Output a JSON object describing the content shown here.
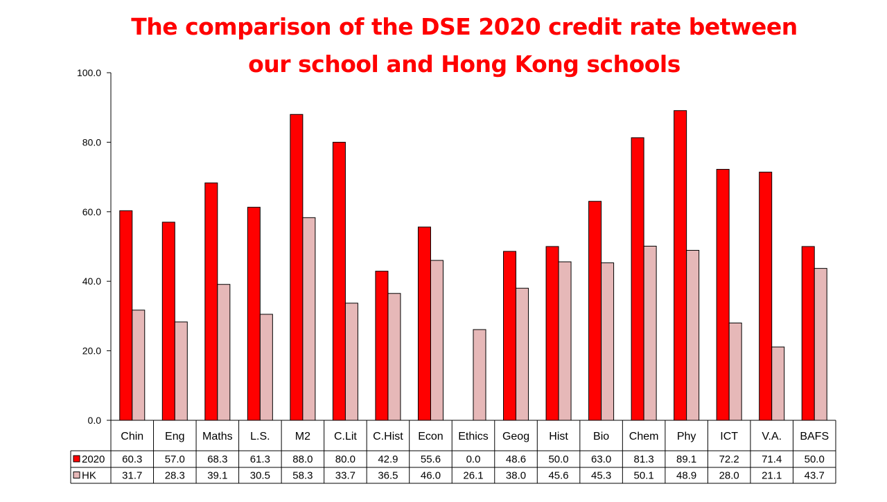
{
  "chart_data": {
    "type": "bar",
    "title_line1": "The comparison of the DSE 2020 credit rate between",
    "title_line2": "our school and Hong Kong schools",
    "categories": [
      "Chin",
      "Eng",
      "Maths",
      "L.S.",
      "M2",
      "C.Lit",
      "C.Hist",
      "Econ",
      "Ethics",
      "Geog",
      "Hist",
      "Bio",
      "Chem",
      "Phy",
      "ICT",
      "V.A.",
      "BAFS"
    ],
    "series": [
      {
        "name": "2020",
        "color": "#ff0000",
        "values": [
          60.3,
          57.0,
          68.3,
          61.3,
          88.0,
          80.0,
          42.9,
          55.6,
          0.0,
          48.6,
          50.0,
          63.0,
          81.3,
          89.1,
          72.2,
          71.4,
          50.0
        ]
      },
      {
        "name": "HK",
        "color": "#e6b8b8",
        "values": [
          31.7,
          28.3,
          39.1,
          30.5,
          58.3,
          33.7,
          36.5,
          46.0,
          26.1,
          38.0,
          45.6,
          45.3,
          50.1,
          48.9,
          28.0,
          21.1,
          43.7
        ]
      }
    ],
    "ylim": [
      0,
      100
    ],
    "yticks": [
      "0.0",
      "20.0",
      "40.0",
      "60.0",
      "80.0",
      "100.0"
    ],
    "legend": "data-table",
    "grid": false
  }
}
